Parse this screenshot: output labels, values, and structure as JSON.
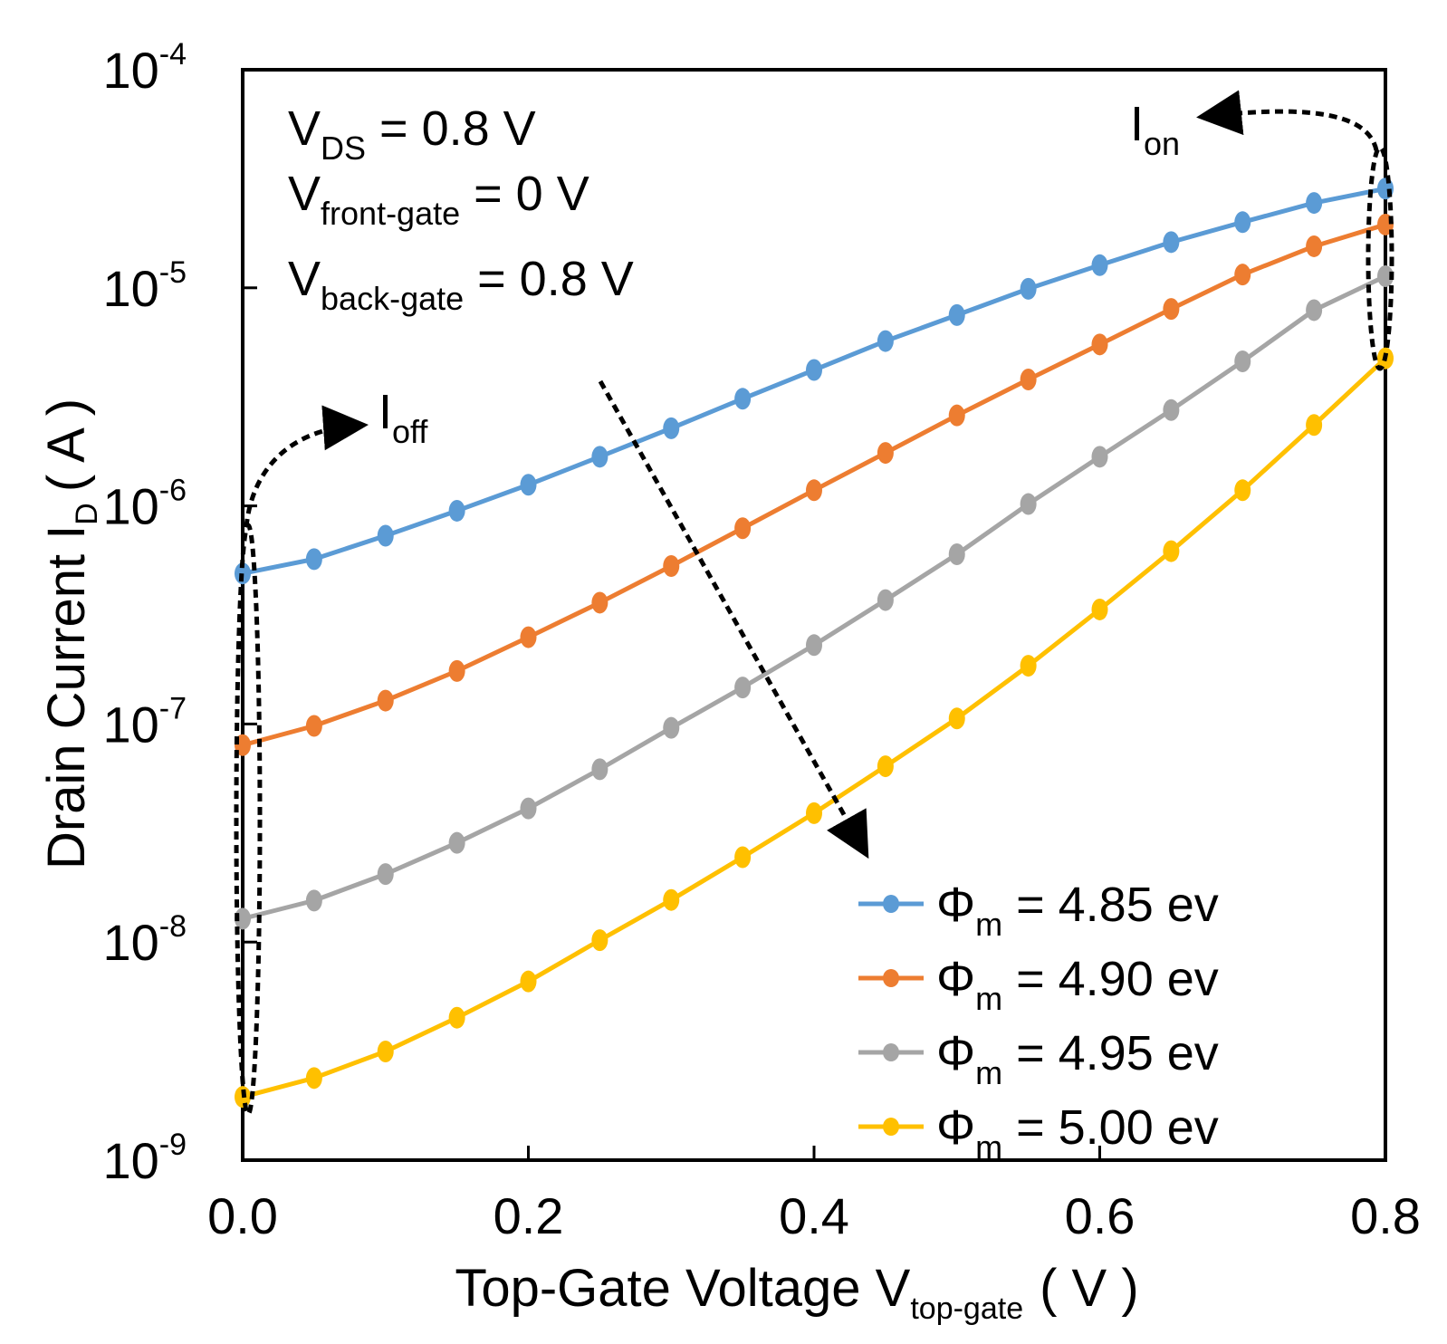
{
  "chart_data": {
    "type": "line",
    "x": [
      0.0,
      0.05,
      0.1,
      0.15,
      0.2,
      0.25,
      0.3,
      0.35,
      0.4,
      0.45,
      0.5,
      0.55,
      0.6,
      0.65,
      0.7,
      0.75,
      0.8
    ],
    "series": [
      {
        "name_symbol": "Φ",
        "name_sub": "m",
        "name_value": " = 4.85 ev",
        "color": "#5B9BD5",
        "values": [
          4.9e-07,
          5.7e-07,
          7.3e-07,
          9.5e-07,
          1.25e-06,
          1.68e-06,
          2.27e-06,
          3.1e-06,
          4.2e-06,
          5.7e-06,
          7.5e-06,
          9.9e-06,
          1.27e-05,
          1.62e-05,
          2e-05,
          2.45e-05,
          2.85e-05
        ]
      },
      {
        "name_symbol": "Φ",
        "name_sub": "m",
        "name_value": " = 4.90 ev",
        "color": "#ED7D31",
        "values": [
          8e-08,
          9.8e-08,
          1.28e-07,
          1.75e-07,
          2.5e-07,
          3.6e-07,
          5.3e-07,
          7.9e-07,
          1.18e-06,
          1.75e-06,
          2.6e-06,
          3.8e-06,
          5.5e-06,
          8e-06,
          1.15e-05,
          1.55e-05,
          1.95e-05
        ]
      },
      {
        "name_symbol": "Φ",
        "name_sub": "m",
        "name_value": " = 4.95 ev",
        "color": "#A5A5A5",
        "values": [
          1.28e-08,
          1.55e-08,
          2.05e-08,
          2.85e-08,
          4.1e-08,
          6.2e-08,
          9.6e-08,
          1.47e-07,
          2.3e-07,
          3.7e-07,
          6e-07,
          1.02e-06,
          1.68e-06,
          2.75e-06,
          4.6e-06,
          7.9e-06,
          1.13e-05
        ]
      },
      {
        "name_symbol": "Φ",
        "name_sub": "m",
        "name_value": " = 5.00 ev",
        "color": "#FFC000",
        "values": [
          1.95e-09,
          2.38e-09,
          3.15e-09,
          4.5e-09,
          6.6e-09,
          1.02e-08,
          1.56e-08,
          2.45e-08,
          3.9e-08,
          6.4e-08,
          1.06e-07,
          1.85e-07,
          3.35e-07,
          6.2e-07,
          1.18e-06,
          2.35e-06,
          4.75e-06
        ]
      }
    ],
    "xlim": [
      0.0,
      0.8
    ],
    "ylim": [
      1e-09,
      0.0001
    ],
    "yscale": "log",
    "xticks": [
      "0.0",
      "0.2",
      "0.4",
      "0.6",
      "0.8"
    ],
    "xtick_values": [
      0.0,
      0.2,
      0.4,
      0.6,
      0.8
    ],
    "yticks": [
      {
        "base": "10",
        "exp": "-4",
        "value": 0.0001
      },
      {
        "base": "10",
        "exp": "-5",
        "value": 1e-05
      },
      {
        "base": "10",
        "exp": "-6",
        "value": 1e-06
      },
      {
        "base": "10",
        "exp": "-7",
        "value": 1e-07
      },
      {
        "base": "10",
        "exp": "-8",
        "value": 1e-08
      },
      {
        "base": "10",
        "exp": "-9",
        "value": 1e-09
      }
    ],
    "xlabel": {
      "main": "Top-Gate Voltage V",
      "sub": "top-gate",
      "unit": "( V )"
    },
    "ylabel": {
      "main": "Drain Current I",
      "sub": "D",
      "unit": "( A )"
    },
    "legend_position": "bottom-right",
    "grid": false,
    "annotations": {
      "conditions": [
        {
          "main": "V",
          "sub": "DS",
          "value": " = 0.8 V"
        },
        {
          "main": "V",
          "sub": "front-gate",
          "value": " = 0 V"
        },
        {
          "main": "V",
          "sub": "back-gate",
          "value": " = 0.8 V"
        }
      ],
      "ioff": {
        "main": "I",
        "sub": "off"
      },
      "ion": {
        "main": "I",
        "sub": "on"
      }
    }
  }
}
